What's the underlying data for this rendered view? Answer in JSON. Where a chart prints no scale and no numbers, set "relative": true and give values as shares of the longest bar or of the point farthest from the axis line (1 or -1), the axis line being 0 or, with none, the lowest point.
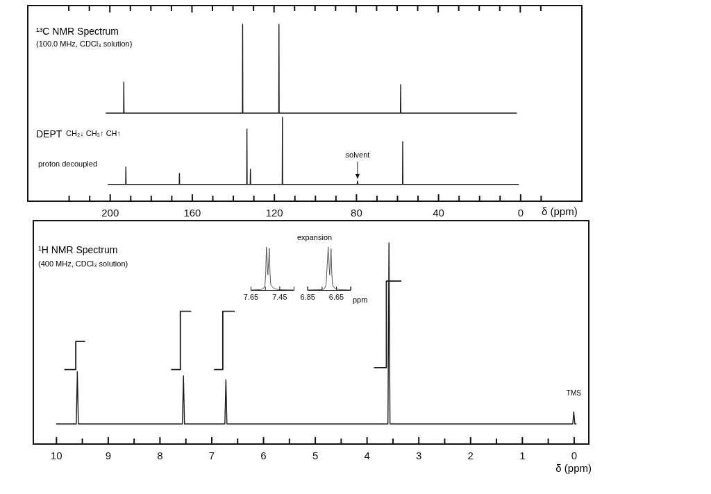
{
  "chart_data": [
    {
      "type": "line",
      "title": "¹³C NMR Spectrum",
      "subtitle": "(100.0 MHz, CDCl₃ solution)",
      "relative": true,
      "xlim": [
        240,
        -30
      ],
      "series": [
        {
          "type": "line",
          "color": "#1a1a1a",
          "x": [
            202,
            193.3,
            193.2,
            193.1,
            135.4,
            135.3,
            135.2,
            117.7,
            117.6,
            117.5,
            58.4,
            58.3,
            58.2,
            1.7
          ],
          "values": [
            0,
            0,
            0.35,
            0,
            0,
            1,
            0,
            0,
            1,
            0,
            0,
            0.32,
            0,
            0
          ]
        }
      ]
    },
    {
      "type": "line",
      "title": "DEPT",
      "xlabel": "δ (ppm)",
      "relative": true,
      "xlim": [
        240,
        -30
      ],
      "xticks": [
        {
          "value": 220,
          "label": null
        },
        {
          "value": 210,
          "label": null
        },
        200,
        {
          "value": 190,
          "label": null
        },
        {
          "value": 180,
          "label": null
        },
        {
          "value": 170,
          "label": null
        },
        160,
        {
          "value": 150,
          "label": null
        },
        {
          "value": 140,
          "label": null
        },
        {
          "value": 130,
          "label": null
        },
        120,
        {
          "value": 110,
          "label": null
        },
        {
          "value": 100,
          "label": null
        },
        {
          "value": 90,
          "label": null
        },
        80,
        {
          "value": 70,
          "label": null
        },
        {
          "value": 60,
          "label": null
        },
        {
          "value": 50,
          "label": null
        },
        40,
        {
          "value": 30,
          "label": null
        },
        {
          "value": 20,
          "label": null
        },
        {
          "value": 10,
          "label": null
        },
        0,
        {
          "value": -10,
          "label": null
        }
      ],
      "annotations": [
        "CH₂↓  CH₃↑  CH↑",
        "proton decoupled",
        {
          "text": "solvent",
          "x": 79.3,
          "y": 0.24
        }
      ],
      "series": [
        {
          "type": "line",
          "color": "#1a1a1a",
          "x": [
            201,
            192.3,
            192.2,
            192.1,
            166.2,
            166.1,
            166,
            133.3,
            133.2,
            133.1,
            131.6,
            131.5,
            131.4,
            116,
            115.9,
            115.8,
            79.5,
            79.3,
            79.1,
            57.4,
            57.3,
            57.2,
            0.7
          ],
          "values": [
            0.2,
            0.2,
            0.41,
            0.2,
            0.2,
            0.33,
            0.2,
            0.2,
            0.86,
            0.2,
            0.2,
            0.38,
            0.2,
            0.2,
            1,
            0.2,
            0.2,
            0.24,
            0.2,
            0.2,
            0.71,
            0.2,
            0.2
          ]
        }
      ]
    },
    {
      "type": "line",
      "title": "¹H NMR Spectrum",
      "subtitle": "(400 MHz, CDCl₃ solution)",
      "xlabel": "δ (ppm)",
      "relative": true,
      "xlim": [
        10.44,
        -0.29
      ],
      "xticks": [
        10,
        {
          "value": 9.5,
          "label": null
        },
        9,
        {
          "value": 8.5,
          "label": null
        },
        8,
        {
          "value": 7.5,
          "label": null
        },
        7,
        {
          "value": 6.5,
          "label": null
        },
        6,
        {
          "value": 5.5,
          "label": null
        },
        5,
        {
          "value": 4.5,
          "label": null
        },
        4,
        {
          "value": 3.5,
          "label": null
        },
        3,
        {
          "value": 2.5,
          "label": null
        },
        2,
        {
          "value": 1.5,
          "label": null
        },
        1,
        {
          "value": 0.5,
          "label": null
        },
        0
      ],
      "annotations": [
        {
          "text": "TMS",
          "x": 0,
          "y": 0.16
        },
        "expansion"
      ],
      "series": [
        {
          "type": "line",
          "color": "#1a1a1a",
          "x": [
            10,
            9.61,
            9.59,
            9.57,
            7.56,
            7.54,
            7.52,
            6.74,
            6.72,
            6.7,
            3.59,
            3.57,
            3.55,
            0.02,
            0,
            -0.02,
            -0.05
          ],
          "values": [
            0.1,
            0.1,
            0.36,
            0.1,
            0.1,
            0.34,
            0.1,
            0.1,
            0.32,
            0.1,
            0.1,
            1,
            0.1,
            0.1,
            0.16,
            0.1,
            0.1
          ]
        },
        {
          "type": "step",
          "color": "#1a1a1a",
          "x": [
            9.84,
            9.62,
            9.44
          ],
          "values": [
            0.37,
            0.51,
            0.51
          ]
        },
        {
          "type": "step",
          "color": "#1a1a1a",
          "x": [
            7.78,
            7.6,
            7.39
          ],
          "values": [
            0.37,
            0.66,
            0.66
          ]
        },
        {
          "type": "step",
          "color": "#1a1a1a",
          "x": [
            6.95,
            6.78,
            6.55
          ],
          "values": [
            0.37,
            0.66,
            0.66
          ]
        },
        {
          "type": "step",
          "color": "#1a1a1a",
          "x": [
            3.86,
            3.62,
            3.33
          ],
          "values": [
            0.38,
            0.81,
            0.81
          ]
        }
      ]
    },
    {
      "type": "line",
      "relative": true,
      "xlim": [
        7.65,
        7.35
      ],
      "xticks": [
        7.65,
        {
          "value": 7.55,
          "label": null
        },
        7.45,
        {
          "value": 7.35,
          "label": null
        }
      ],
      "series": [
        {
          "type": "line",
          "color": "#555555",
          "x": [
            7.65,
            7.58,
            7.56,
            7.55,
            7.545,
            7.54,
            7.53,
            7.52,
            7.515,
            7.51,
            7.49,
            7.46,
            7.35
          ],
          "values": [
            0,
            0.01,
            0.04,
            0.12,
            0.4,
            1,
            0.35,
            0.97,
            0.4,
            0.12,
            0.04,
            0.01,
            0
          ]
        }
      ]
    },
    {
      "type": "line",
      "relative": true,
      "xlabel": "ppm",
      "xlim": [
        6.85,
        6.55
      ],
      "xticks": [
        6.85,
        {
          "value": 6.75,
          "label": null
        },
        6.65,
        {
          "value": 6.55,
          "label": null
        }
      ],
      "series": [
        {
          "type": "line",
          "color": "#555555",
          "x": [
            6.85,
            6.75,
            6.73,
            6.72,
            6.715,
            6.705,
            6.695,
            6.685,
            6.68,
            6.675,
            6.66,
            6.63,
            6.55
          ],
          "values": [
            0,
            0.01,
            0.04,
            0.12,
            0.4,
            1,
            0.35,
            0.96,
            0.4,
            0.12,
            0.04,
            0.01,
            0
          ]
        }
      ]
    }
  ]
}
